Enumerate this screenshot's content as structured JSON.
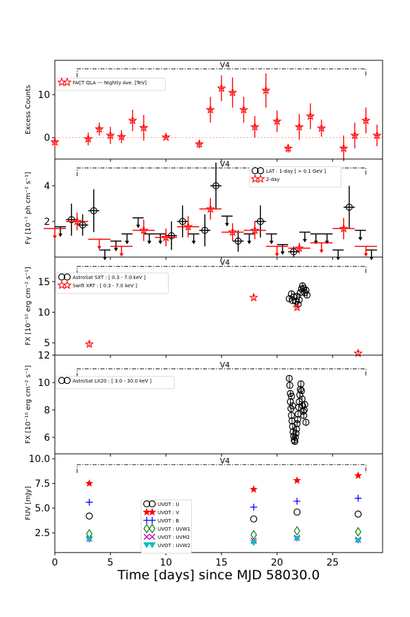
{
  "figure": {
    "xlabel": "Time [days] since MJD 58030.0",
    "xlim": [
      0,
      29.5
    ],
    "xticks": [
      0,
      5,
      10,
      15,
      20,
      25
    ]
  },
  "chart_data": [
    {
      "type": "scatter",
      "panel": "fact",
      "ylabel": "Excess Counts",
      "ylim": [
        -5,
        18
      ],
      "yticks": [
        0,
        10
      ],
      "period_label": "V4",
      "period_range": [
        2.0,
        28.0
      ],
      "period_level": 16.0,
      "baseline": 0,
      "legend": [
        {
          "label": "FACT QLA --- Nightly Ave. [TeV]",
          "color": "#ff0000",
          "marker": "star-open"
        }
      ],
      "series": [
        {
          "name": "FACT QLA --- Nightly Ave. [TeV]",
          "color": "#ff0000",
          "marker": "star-open",
          "points": [
            {
              "x": 0.0,
              "y": -1.0,
              "yerr": 1.5
            },
            {
              "x": 3.0,
              "y": -0.3,
              "yerr": 1.5
            },
            {
              "x": 4.0,
              "y": 2.0,
              "yerr": 1.5
            },
            {
              "x": 5.0,
              "y": 0.5,
              "yerr": 2.0
            },
            {
              "x": 6.0,
              "y": 0.2,
              "yerr": 1.5
            },
            {
              "x": 7.0,
              "y": 4.0,
              "yerr": 2.5
            },
            {
              "x": 8.0,
              "y": 2.3,
              "yerr": 3.0
            },
            {
              "x": 10.0,
              "y": 0.1,
              "yerr": 0.5
            },
            {
              "x": 13.0,
              "y": -1.5,
              "yerr": 1.0
            },
            {
              "x": 14.0,
              "y": 6.5,
              "yerr": 3.0
            },
            {
              "x": 15.0,
              "y": 11.5,
              "yerr": 3.0
            },
            {
              "x": 16.0,
              "y": 10.5,
              "yerr": 3.5
            },
            {
              "x": 17.0,
              "y": 6.5,
              "yerr": 3.0
            },
            {
              "x": 18.0,
              "y": 2.5,
              "yerr": 2.5
            },
            {
              "x": 19.0,
              "y": 11.0,
              "yerr": 4.0
            },
            {
              "x": 20.0,
              "y": 3.8,
              "yerr": 2.5
            },
            {
              "x": 21.0,
              "y": -2.5,
              "yerr": 1.0
            },
            {
              "x": 22.0,
              "y": 2.5,
              "yerr": 3.0
            },
            {
              "x": 23.0,
              "y": 5.0,
              "yerr": 3.0
            },
            {
              "x": 24.0,
              "y": 2.2,
              "yerr": 2.0
            },
            {
              "x": 26.0,
              "y": -2.5,
              "yerr": 3.0
            },
            {
              "x": 27.0,
              "y": 0.5,
              "yerr": 3.0
            },
            {
              "x": 28.0,
              "y": 4.0,
              "yerr": 3.0
            },
            {
              "x": 29.0,
              "y": 0.5,
              "yerr": 2.5
            }
          ]
        }
      ]
    },
    {
      "type": "scatter",
      "panel": "lat",
      "ylabel": "Fγ [10⁻⁷ ph cm⁻² s⁻¹]",
      "ylim": [
        0,
        5.5
      ],
      "yticks": [
        2,
        4
      ],
      "period_label": "V4",
      "period_range": [
        2.0,
        28.0
      ],
      "period_level": 5.0,
      "legend": [
        {
          "label": "LAT : 1-day [ > 0.1 GeV ]",
          "color": "#000000",
          "marker": "circle-open"
        },
        {
          "label": "2-day",
          "color": "#ff0000",
          "marker": "star-open"
        }
      ],
      "series": [
        {
          "name": "LAT : 1-day [ > 0.1 GeV ]",
          "color": "#000000",
          "points": [
            {
              "x": 0.5,
              "y": 1.7,
              "ul": true
            },
            {
              "x": 1.5,
              "y": 2.1,
              "yerr": 0.9
            },
            {
              "x": 2.5,
              "y": 1.8,
              "yerr": 0.6
            },
            {
              "x": 3.5,
              "y": 2.6,
              "yerr": 1.2
            },
            {
              "x": 4.5,
              "y": 0.4,
              "ul": true
            },
            {
              "x": 5.5,
              "y": 0.9,
              "ul": true
            },
            {
              "x": 6.5,
              "y": 1.3,
              "ul": true
            },
            {
              "x": 7.5,
              "y": 2.2,
              "ul": true
            },
            {
              "x": 8.5,
              "y": 1.3,
              "ul": true
            },
            {
              "x": 9.5,
              "y": 1.3,
              "ul": true
            },
            {
              "x": 10.5,
              "y": 1.2,
              "yerr": 0.8
            },
            {
              "x": 11.5,
              "y": 2.0,
              "yerr": 0.9
            },
            {
              "x": 12.5,
              "y": 1.3,
              "ul": true
            },
            {
              "x": 13.5,
              "y": 1.5,
              "yerr": 0.9
            },
            {
              "x": 14.5,
              "y": 4.0,
              "yerr": 1.3
            },
            {
              "x": 15.5,
              "y": 2.3,
              "ul": true
            },
            {
              "x": 16.5,
              "y": 0.9,
              "yerr": 0.6
            },
            {
              "x": 17.5,
              "y": 1.3,
              "ul": true
            },
            {
              "x": 18.5,
              "y": 2.0,
              "yerr": 0.9
            },
            {
              "x": 19.5,
              "y": 1.3,
              "ul": true
            },
            {
              "x": 20.5,
              "y": 0.7,
              "ul": true
            },
            {
              "x": 21.5,
              "y": 0.3,
              "yerr": 0.3
            },
            {
              "x": 22.5,
              "y": 1.4,
              "ul": true
            },
            {
              "x": 23.5,
              "y": 1.3,
              "ul": true
            },
            {
              "x": 24.5,
              "y": 1.3,
              "ul": true
            },
            {
              "x": 25.5,
              "y": 0.4,
              "ul": true
            },
            {
              "x": 26.5,
              "y": 2.8,
              "yerr": 1.2
            },
            {
              "x": 27.5,
              "y": 1.5,
              "ul": true
            },
            {
              "x": 28.5,
              "y": 0.4,
              "ul": true
            }
          ]
        },
        {
          "name": "2-day",
          "color": "#ff0000",
          "points": [
            {
              "x": 0.0,
              "y": 1.6,
              "ul": true
            },
            {
              "x": 2.0,
              "y": 2.0,
              "yerr": 0.5
            },
            {
              "x": 4.0,
              "y": 1.0,
              "ul": true
            },
            {
              "x": 6.0,
              "y": 0.6,
              "ul": true
            },
            {
              "x": 8.0,
              "y": 1.5,
              "yerr": 0.6
            },
            {
              "x": 10.0,
              "y": 1.1,
              "yerr": 0.5
            },
            {
              "x": 12.0,
              "y": 1.7,
              "yerr": 0.6
            },
            {
              "x": 14.0,
              "y": 2.7,
              "yerr": 0.6
            },
            {
              "x": 16.0,
              "y": 1.4,
              "yerr": 0.5
            },
            {
              "x": 18.0,
              "y": 1.5,
              "yerr": 0.5
            },
            {
              "x": 20.0,
              "y": 0.6,
              "ul": true
            },
            {
              "x": 22.0,
              "y": 0.5,
              "yerr": 0.3
            },
            {
              "x": 24.0,
              "y": 0.8,
              "ul": true
            },
            {
              "x": 26.0,
              "y": 1.6,
              "yerr": 0.6
            },
            {
              "x": 28.0,
              "y": 0.6,
              "ul": true
            }
          ]
        }
      ]
    },
    {
      "type": "scatter",
      "panel": "xray",
      "ylabel": "FX [10⁻¹⁰ erg cm⁻² s⁻¹]",
      "ylim": [
        3,
        19
      ],
      "yticks": [
        5,
        10,
        15
      ],
      "period_label": "V4",
      "period_range": [
        2.0,
        28.0
      ],
      "period_level": 17.5,
      "legend": [
        {
          "label": "AstroSat SXT : [ 0.3 - 7.0 keV ]",
          "color": "#000000",
          "marker": "circle-open"
        },
        {
          "label": "Swift XRT : [ 0.3 - 7.0 keV ]",
          "color": "#ff0000",
          "marker": "star-open"
        }
      ],
      "series": [
        {
          "name": "AstroSat SXT : [ 0.3 - 7.0 keV ]",
          "color": "#000000",
          "points": [
            {
              "x": 21.1,
              "y": 12.2
            },
            {
              "x": 21.3,
              "y": 13.0
            },
            {
              "x": 21.5,
              "y": 12.5
            },
            {
              "x": 21.7,
              "y": 11.8
            },
            {
              "x": 21.9,
              "y": 11.3
            },
            {
              "x": 22.0,
              "y": 12.0
            },
            {
              "x": 22.1,
              "y": 13.2
            },
            {
              "x": 22.2,
              "y": 13.8
            },
            {
              "x": 22.3,
              "y": 14.3
            },
            {
              "x": 22.4,
              "y": 13.9
            },
            {
              "x": 22.5,
              "y": 13.2
            },
            {
              "x": 22.6,
              "y": 13.6
            },
            {
              "x": 22.7,
              "y": 12.8
            },
            {
              "x": 21.4,
              "y": 11.9
            },
            {
              "x": 21.8,
              "y": 12.6
            }
          ]
        },
        {
          "name": "Swift XRT : [ 0.3 - 7.0 keV ]",
          "color": "#ff0000",
          "points": [
            {
              "x": 3.1,
              "y": 4.8
            },
            {
              "x": 17.9,
              "y": 12.4
            },
            {
              "x": 21.8,
              "y": 10.8
            },
            {
              "x": 27.3,
              "y": 3.3
            }
          ]
        }
      ]
    },
    {
      "type": "scatter",
      "panel": "lx20",
      "ylabel": "FX [10⁻¹⁰ erg cm⁻² s⁻¹]",
      "ylim": [
        4.8,
        12
      ],
      "yticks": [
        6,
        8,
        10,
        12
      ],
      "period_label": "V4",
      "period_range": [
        2.0,
        28.0
      ],
      "period_level": 11.0,
      "legend": [
        {
          "label": "AstroSat LX20 : [ 3.0 - 30.0 keV ]",
          "color": "#000000",
          "marker": "circle-open"
        }
      ],
      "series": [
        {
          "name": "AstroSat LX20 : [ 3.0 - 30.0 keV ]",
          "color": "#000000",
          "points": [
            {
              "x": 21.1,
              "y": 10.3
            },
            {
              "x": 21.15,
              "y": 9.8
            },
            {
              "x": 21.2,
              "y": 9.2
            },
            {
              "x": 21.2,
              "y": 8.6
            },
            {
              "x": 21.25,
              "y": 8.1
            },
            {
              "x": 21.3,
              "y": 7.6
            },
            {
              "x": 21.35,
              "y": 7.2
            },
            {
              "x": 21.4,
              "y": 6.8
            },
            {
              "x": 21.45,
              "y": 6.4
            },
            {
              "x": 21.5,
              "y": 6.1
            },
            {
              "x": 21.55,
              "y": 5.8
            },
            {
              "x": 21.6,
              "y": 5.7
            },
            {
              "x": 21.65,
              "y": 6.0
            },
            {
              "x": 21.7,
              "y": 6.3
            },
            {
              "x": 21.75,
              "y": 6.6
            },
            {
              "x": 21.8,
              "y": 7.0
            },
            {
              "x": 21.85,
              "y": 7.3
            },
            {
              "x": 21.9,
              "y": 7.7
            },
            {
              "x": 21.95,
              "y": 8.2
            },
            {
              "x": 22.0,
              "y": 8.6
            },
            {
              "x": 22.05,
              "y": 9.1
            },
            {
              "x": 22.1,
              "y": 9.5
            },
            {
              "x": 22.15,
              "y": 9.9
            },
            {
              "x": 22.2,
              "y": 9.4
            },
            {
              "x": 22.25,
              "y": 8.8
            },
            {
              "x": 22.3,
              "y": 8.3
            },
            {
              "x": 22.35,
              "y": 7.9
            },
            {
              "x": 22.4,
              "y": 7.6
            },
            {
              "x": 22.45,
              "y": 8.0
            },
            {
              "x": 22.5,
              "y": 8.4
            },
            {
              "x": 22.6,
              "y": 7.1
            },
            {
              "x": 21.3,
              "y": 9.0
            },
            {
              "x": 21.4,
              "y": 8.3
            }
          ]
        }
      ]
    },
    {
      "type": "scatter",
      "panel": "uvot",
      "ylabel": "FUV [mJy]",
      "ylim": [
        0.5,
        10.5
      ],
      "yticks": [
        2.5,
        5.0,
        7.5,
        10.0
      ],
      "ytick_labels": [
        "2.5",
        "5.0",
        "7.5",
        "10.0"
      ],
      "period_label": "V4",
      "period_range": [
        2.0,
        28.0
      ],
      "period_level": 9.4,
      "legend": [
        {
          "label": "UVOT : U",
          "color": "#000000",
          "marker": "circle-open"
        },
        {
          "label": "UVOT : V",
          "color": "#ff0000",
          "marker": "star"
        },
        {
          "label": "UVOT : B",
          "color": "#0000ff",
          "marker": "plus"
        },
        {
          "label": "UVOT : UVW1",
          "color": "#008000",
          "marker": "diamond-open"
        },
        {
          "label": "UVOT : UVM2",
          "color": "#bf00bf",
          "marker": "x"
        },
        {
          "label": "UVOT : UVW2",
          "color": "#00bfbf",
          "marker": "tri-down"
        }
      ],
      "series": [
        {
          "name": "UVOT : U",
          "color": "#000000",
          "marker": "circle-open",
          "points": [
            {
              "x": 3.1,
              "y": 4.2
            },
            {
              "x": 17.9,
              "y": 3.9
            },
            {
              "x": 21.8,
              "y": 4.6
            },
            {
              "x": 27.3,
              "y": 4.4
            }
          ]
        },
        {
          "name": "UVOT : V",
          "color": "#ff0000",
          "marker": "star",
          "points": [
            {
              "x": 3.1,
              "y": 7.5
            },
            {
              "x": 17.9,
              "y": 6.9
            },
            {
              "x": 21.8,
              "y": 7.8
            },
            {
              "x": 27.3,
              "y": 8.3
            }
          ]
        },
        {
          "name": "UVOT : B",
          "color": "#0000ff",
          "marker": "plus",
          "points": [
            {
              "x": 3.1,
              "y": 5.6
            },
            {
              "x": 17.9,
              "y": 5.1
            },
            {
              "x": 21.8,
              "y": 5.7
            },
            {
              "x": 27.3,
              "y": 6.0
            }
          ]
        },
        {
          "name": "UVOT : UVW1",
          "color": "#008000",
          "marker": "diamond-open",
          "points": [
            {
              "x": 3.1,
              "y": 2.4
            },
            {
              "x": 17.9,
              "y": 2.3
            },
            {
              "x": 21.8,
              "y": 2.7
            },
            {
              "x": 27.3,
              "y": 2.6
            }
          ]
        },
        {
          "name": "UVOT : UVM2",
          "color": "#bf00bf",
          "marker": "x",
          "points": [
            {
              "x": 3.1,
              "y": 1.9
            },
            {
              "x": 17.9,
              "y": 1.7
            },
            {
              "x": 21.8,
              "y": 2.0
            },
            {
              "x": 27.3,
              "y": 1.8
            }
          ]
        },
        {
          "name": "UVOT : UVW2",
          "color": "#00bfbf",
          "marker": "tri-down",
          "points": [
            {
              "x": 3.1,
              "y": 1.8
            },
            {
              "x": 17.9,
              "y": 1.5
            },
            {
              "x": 21.8,
              "y": 1.9
            },
            {
              "x": 27.3,
              "y": 1.7
            }
          ]
        }
      ]
    }
  ]
}
